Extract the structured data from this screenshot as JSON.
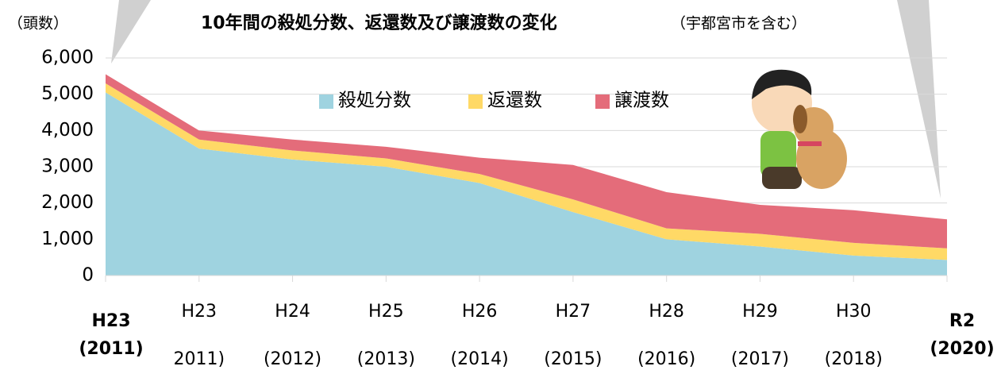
{
  "chart_data": {
    "type": "stacked_area",
    "title": "10年間の殺処分数、返還数及び譲渡数の変化",
    "subtitle": "（宇都宮市を含む）",
    "y_label": "（頭数）",
    "categories": [
      [
        "H23",
        "(2011)"
      ],
      [
        "H23",
        "2011)"
      ],
      [
        "H24",
        "(2012)"
      ],
      [
        "H25",
        "(2013)"
      ],
      [
        "H26",
        "(2014)"
      ],
      [
        "H27",
        "(2015)"
      ],
      [
        "H28",
        "(2016)"
      ],
      [
        "H29",
        "(2017)"
      ],
      [
        "H30",
        "(2018)"
      ],
      [
        "R2",
        "(2020)"
      ]
    ],
    "bold_categories": [
      0,
      9
    ],
    "series": [
      {
        "name": "殺処分数",
        "color": "#9fd3e0",
        "values": [
          5050,
          3500,
          3200,
          3000,
          2550,
          1750,
          1000,
          800,
          550,
          430
        ]
      },
      {
        "name": "返還数",
        "color": "#ffd966",
        "values": [
          250,
          250,
          250,
          230,
          250,
          350,
          300,
          350,
          350,
          320
        ]
      },
      {
        "name": "譲渡数",
        "color": "#e46c7a",
        "values": [
          250,
          250,
          300,
          320,
          450,
          950,
          1000,
          800,
          900,
          800
        ]
      }
    ],
    "ylim": [
      0,
      6000
    ],
    "yticks": [
      0,
      {
        "value": 1000,
        "label": "1,000"
      },
      {
        "value": 2000,
        "label": "2,000"
      },
      {
        "value": 3000,
        "label": "3,000"
      },
      {
        "value": 4000,
        "label": "4,000"
      },
      {
        "value": 5000,
        "label": "5,000"
      },
      {
        "value": 6000,
        "label": "6,000"
      }
    ],
    "grid": true
  }
}
